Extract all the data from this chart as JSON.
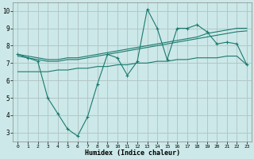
{
  "xlabel": "Humidex (Indice chaleur)",
  "bg_color": "#cce8e8",
  "line_color": "#1a7a6e",
  "xlim": [
    -0.5,
    23.5
  ],
  "ylim": [
    2.5,
    10.5
  ],
  "xticks": [
    0,
    1,
    2,
    3,
    4,
    5,
    6,
    7,
    8,
    9,
    10,
    11,
    12,
    13,
    14,
    15,
    16,
    17,
    18,
    19,
    20,
    21,
    22,
    23
  ],
  "yticks": [
    3,
    4,
    5,
    6,
    7,
    8,
    9,
    10
  ],
  "line1_x": [
    0,
    1,
    2,
    3,
    4,
    5,
    6,
    7,
    8,
    9,
    10,
    11,
    12,
    13,
    14,
    15,
    16,
    17,
    18,
    19,
    20,
    21,
    22,
    23
  ],
  "line1_y": [
    7.5,
    7.3,
    7.1,
    5.0,
    4.1,
    3.2,
    2.8,
    3.9,
    5.8,
    7.5,
    7.3,
    6.3,
    7.1,
    10.1,
    9.0,
    7.2,
    9.0,
    9.0,
    9.2,
    8.8,
    8.1,
    8.2,
    8.1,
    6.9
  ],
  "line2_x": [
    0,
    1,
    2,
    3,
    4,
    5,
    6,
    7,
    8,
    9,
    10,
    11,
    12,
    13,
    14,
    15,
    16,
    17,
    18,
    19,
    20,
    21,
    22,
    23
  ],
  "line2_y": [
    7.5,
    7.4,
    7.3,
    7.2,
    7.2,
    7.3,
    7.3,
    7.4,
    7.5,
    7.6,
    7.7,
    7.8,
    7.9,
    8.0,
    8.1,
    8.2,
    8.3,
    8.4,
    8.5,
    8.7,
    8.8,
    8.9,
    9.0,
    9.0
  ],
  "line3_x": [
    0,
    1,
    2,
    3,
    4,
    5,
    6,
    7,
    8,
    9,
    10,
    11,
    12,
    13,
    14,
    15,
    16,
    17,
    18,
    19,
    20,
    21,
    22,
    23
  ],
  "line3_y": [
    7.4,
    7.3,
    7.2,
    7.1,
    7.1,
    7.2,
    7.2,
    7.3,
    7.4,
    7.5,
    7.6,
    7.7,
    7.8,
    7.9,
    8.0,
    8.1,
    8.2,
    8.3,
    8.4,
    8.5,
    8.6,
    8.7,
    8.8,
    8.85
  ],
  "line4_x": [
    0,
    1,
    2,
    3,
    4,
    5,
    6,
    7,
    8,
    9,
    10,
    11,
    12,
    13,
    14,
    15,
    16,
    17,
    18,
    19,
    20,
    21,
    22,
    23
  ],
  "line4_y": [
    6.5,
    6.5,
    6.5,
    6.5,
    6.6,
    6.6,
    6.7,
    6.7,
    6.8,
    6.8,
    6.9,
    6.9,
    7.0,
    7.0,
    7.1,
    7.1,
    7.2,
    7.2,
    7.3,
    7.3,
    7.3,
    7.4,
    7.4,
    6.9
  ],
  "grid_color": "#aacccc",
  "grid_major_color": "#cc9999",
  "marker": "+"
}
